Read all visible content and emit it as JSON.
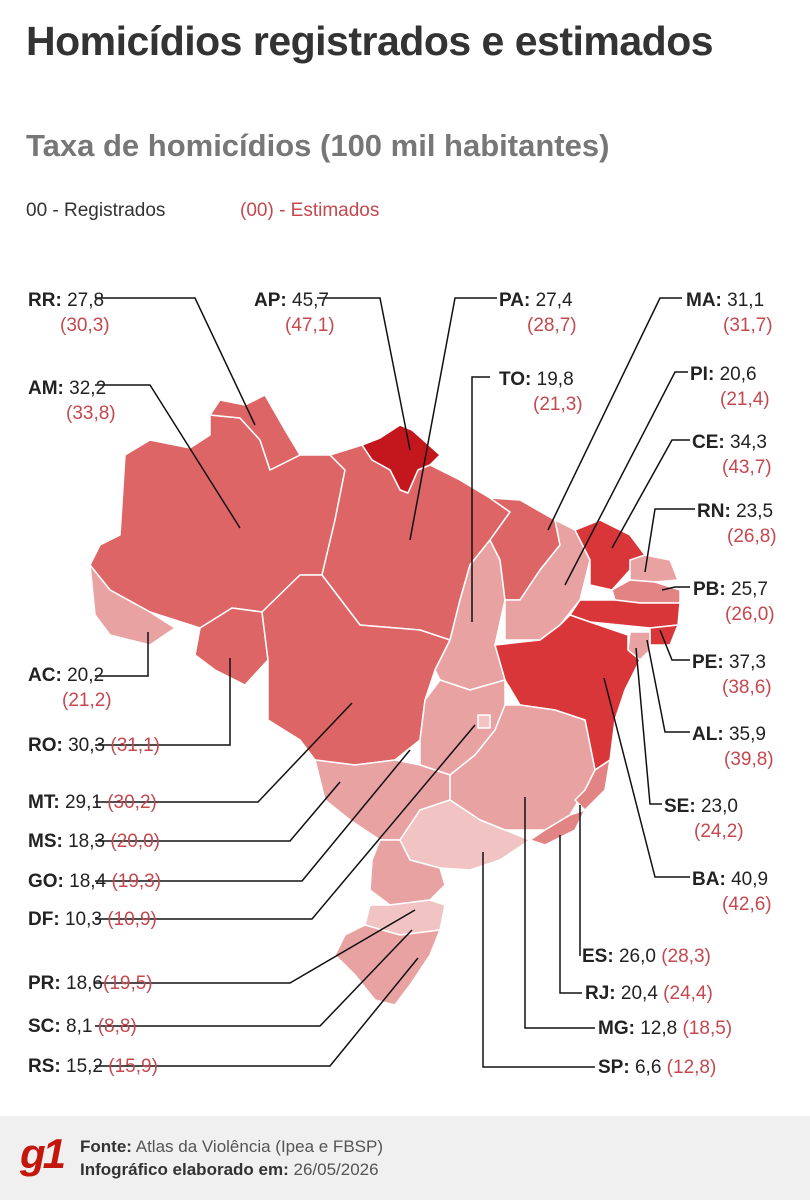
{
  "header": {
    "title": "Homicídios registrados e estimados",
    "subtitle": "Taxa de homicídios (100 mil habitantes)"
  },
  "legend": {
    "registered": "00 - Registrados",
    "estimated": "(00) - Estimados"
  },
  "states": {
    "RR": {
      "uf": "RR:",
      "reg": "27,8",
      "est": "(30,3)"
    },
    "AP": {
      "uf": "AP:",
      "reg": "45,7",
      "est": "(47,1)"
    },
    "PA": {
      "uf": "PA:",
      "reg": "27,4",
      "est": "(28,7)"
    },
    "MA": {
      "uf": "MA:",
      "reg": "31,1",
      "est": "(31,7)"
    },
    "AM": {
      "uf": "AM:",
      "reg": "32,2",
      "est": "(33,8)"
    },
    "TO": {
      "uf": "TO:",
      "reg": "19,8",
      "est": "(21,3)"
    },
    "PI": {
      "uf": "PI:",
      "reg": "20,6",
      "est": "(21,4)"
    },
    "CE": {
      "uf": "CE:",
      "reg": "34,3",
      "est": "(43,7)"
    },
    "RN": {
      "uf": "RN:",
      "reg": "23,5",
      "est": "(26,8)"
    },
    "PB": {
      "uf": "PB:",
      "reg": "25,7",
      "est": "(26,0)"
    },
    "AC": {
      "uf": "AC:",
      "reg": "20,2",
      "est": "(21,2)"
    },
    "PE": {
      "uf": "PE:",
      "reg": "37,3",
      "est": "(38,6)"
    },
    "RO": {
      "uf": "RO:",
      "reg": "30,3",
      "est": "(31,1)"
    },
    "AL": {
      "uf": "AL:",
      "reg": "35,9",
      "est": "(39,8)"
    },
    "MT": {
      "uf": "MT:",
      "reg": "29,1",
      "est": "(30,2)"
    },
    "SE": {
      "uf": "SE:",
      "reg": "23,0",
      "est": "(24,2)"
    },
    "MS": {
      "uf": "MS:",
      "reg": "18,3",
      "est": "(20,0)"
    },
    "BA": {
      "uf": "BA:",
      "reg": "40,9",
      "est": "(42,6)"
    },
    "GO": {
      "uf": "GO:",
      "reg": "18,4",
      "est": "(19,3)"
    },
    "DF": {
      "uf": "DF:",
      "reg": "10,3",
      "est": "(10,9)"
    },
    "ES": {
      "uf": "ES:",
      "reg": "26,0",
      "est": "(28,3)"
    },
    "PR": {
      "uf": "PR:",
      "reg": "18,6",
      "est": "(19,5)"
    },
    "RJ": {
      "uf": "RJ:",
      "reg": "20,4",
      "est": "(24,4)"
    },
    "SC": {
      "uf": "SC:",
      "reg": "8,1",
      "est": "(8,8)"
    },
    "MG": {
      "uf": "MG:",
      "reg": "12,8",
      "est": "(18,5)"
    },
    "RS": {
      "uf": "RS:",
      "reg": "15,2",
      "est": "(15,9)"
    },
    "SP": {
      "uf": "SP:",
      "reg": "6,6",
      "est": "(12,8)"
    }
  },
  "colors": {
    "highest": "#c4171d",
    "high": "#d9363a",
    "upper": "#de6565",
    "mid": "#e38484",
    "lower": "#e9a2a2",
    "lowest": "#f1c3c3",
    "estimated_text": "#c5484f",
    "brand": "#c4170c"
  },
  "footer": {
    "logo": "g1",
    "source_label": "Fonte:",
    "source_value": "Atlas da Violência (Ipea e FBSP)",
    "date_label": "Infográfico elaborado em:",
    "date_value": "26/05/2026"
  }
}
